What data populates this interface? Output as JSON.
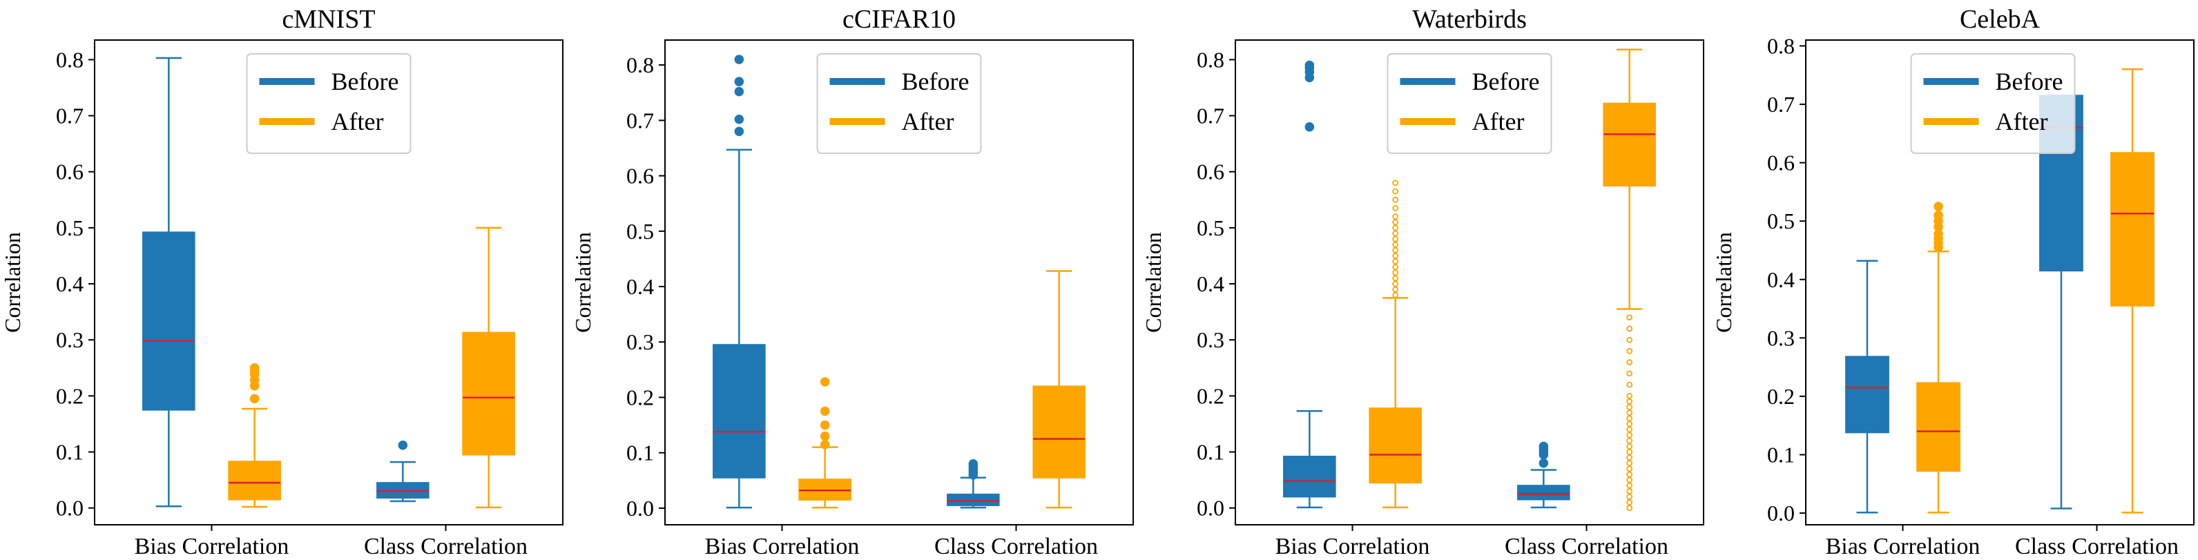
{
  "colors": {
    "before": "#1f77b4",
    "after": "#ffa500",
    "median": "#e8192c",
    "axis": "#000000"
  },
  "chart_data": [
    {
      "type": "box",
      "title": "cMNIST",
      "ylabel": "Correlation",
      "categories": [
        "Bias Correlation",
        "Class Correlation"
      ],
      "ylim": [
        -0.03,
        0.835
      ],
      "yticks": [
        "0.0",
        "0.1",
        "0.2",
        "0.3",
        "0.4",
        "0.5",
        "0.6",
        "0.7",
        "0.8"
      ],
      "legend": {
        "position": "upper-center",
        "entries": [
          "Before",
          "After"
        ]
      },
      "series": [
        {
          "name": "Before",
          "boxes": [
            {
              "min": 0.003,
              "q1": 0.175,
              "median": 0.298,
              "q3": 0.492,
              "max": 0.803,
              "outliers": []
            },
            {
              "min": 0.012,
              "q1": 0.018,
              "median": 0.03,
              "q3": 0.045,
              "max": 0.082,
              "outliers": [
                0.112
              ]
            }
          ]
        },
        {
          "name": "After",
          "boxes": [
            {
              "min": 0.002,
              "q1": 0.015,
              "median": 0.045,
              "q3": 0.083,
              "max": 0.177,
              "outliers": [
                0.195,
                0.218,
                0.228,
                0.238,
                0.245,
                0.25
              ]
            },
            {
              "min": 0.001,
              "q1": 0.095,
              "median": 0.197,
              "q3": 0.313,
              "max": 0.5,
              "outliers": []
            }
          ]
        }
      ]
    },
    {
      "type": "box",
      "title": "cCIFAR10",
      "ylabel": "Correlation",
      "categories": [
        "Bias Correlation",
        "Class Correlation"
      ],
      "ylim": [
        -0.03,
        0.845
      ],
      "yticks": [
        "0.0",
        "0.1",
        "0.2",
        "0.3",
        "0.4",
        "0.5",
        "0.6",
        "0.7",
        "0.8"
      ],
      "legend": {
        "position": "upper-center",
        "entries": [
          "Before",
          "After"
        ]
      },
      "series": [
        {
          "name": "Before",
          "boxes": [
            {
              "min": 0.001,
              "q1": 0.055,
              "median": 0.138,
              "q3": 0.295,
              "max": 0.647,
              "outliers": [
                0.68,
                0.702,
                0.752,
                0.77,
                0.81
              ]
            },
            {
              "min": 0.001,
              "q1": 0.005,
              "median": 0.013,
              "q3": 0.025,
              "max": 0.055,
              "outliers": [
                0.06,
                0.065,
                0.07,
                0.075,
                0.08
              ]
            }
          ]
        },
        {
          "name": "After",
          "boxes": [
            {
              "min": 0.001,
              "q1": 0.015,
              "median": 0.032,
              "q3": 0.052,
              "max": 0.11,
              "outliers": [
                0.115,
                0.13,
                0.15,
                0.175,
                0.228
              ]
            },
            {
              "min": 0.001,
              "q1": 0.055,
              "median": 0.125,
              "q3": 0.22,
              "max": 0.428,
              "outliers": []
            }
          ]
        }
      ]
    },
    {
      "type": "box",
      "title": "Waterbirds",
      "ylabel": "Correlation",
      "categories": [
        "Bias Correlation",
        "Class Correlation"
      ],
      "ylim": [
        -0.03,
        0.835
      ],
      "yticks": [
        "0.0",
        "0.1",
        "0.2",
        "0.3",
        "0.4",
        "0.5",
        "0.6",
        "0.7",
        "0.8"
      ],
      "legend": {
        "position": "upper-center",
        "entries": [
          "Before",
          "After"
        ]
      },
      "series": [
        {
          "name": "Before",
          "boxes": [
            {
              "min": 0.001,
              "q1": 0.02,
              "median": 0.048,
              "q3": 0.092,
              "max": 0.173,
              "outliers": [
                0.68,
                0.768,
                0.778,
                0.785,
                0.79
              ]
            },
            {
              "min": 0.001,
              "q1": 0.015,
              "median": 0.025,
              "q3": 0.04,
              "max": 0.068,
              "outliers": [
                0.08,
                0.095,
                0.1,
                0.105,
                0.11
              ]
            }
          ]
        },
        {
          "name": "After",
          "boxes": [
            {
              "min": 0.001,
              "q1": 0.045,
              "median": 0.095,
              "q3": 0.178,
              "max": 0.375,
              "outliers": [
                0.38,
                0.39,
                0.4,
                0.41,
                0.42,
                0.43,
                0.44,
                0.45,
                0.46,
                0.47,
                0.48,
                0.49,
                0.5,
                0.51,
                0.52,
                0.535,
                0.55,
                0.565,
                0.58
              ]
            },
            {
              "min": 0.355,
              "q1": 0.575,
              "median": 0.667,
              "q3": 0.722,
              "max": 0.818,
              "outliers": [
                0.0,
                0.01,
                0.02,
                0.03,
                0.04,
                0.05,
                0.06,
                0.07,
                0.08,
                0.09,
                0.1,
                0.11,
                0.12,
                0.13,
                0.14,
                0.15,
                0.16,
                0.17,
                0.18,
                0.19,
                0.2,
                0.22,
                0.24,
                0.26,
                0.28,
                0.3,
                0.32,
                0.34
              ]
            }
          ]
        }
      ]
    },
    {
      "type": "box",
      "title": "CelebA",
      "ylabel": "Correlation",
      "categories": [
        "Bias Correlation",
        "Class Correlation"
      ],
      "ylim": [
        -0.02,
        0.81
      ],
      "yticks": [
        "0.0",
        "0.1",
        "0.2",
        "0.3",
        "0.4",
        "0.5",
        "0.6",
        "0.7",
        "0.8"
      ],
      "legend": {
        "position": "upper-center",
        "entries": [
          "Before",
          "After"
        ]
      },
      "series": [
        {
          "name": "Before",
          "boxes": [
            {
              "min": 0.001,
              "q1": 0.138,
              "median": 0.215,
              "q3": 0.268,
              "max": 0.432,
              "outliers": []
            },
            {
              "min": 0.008,
              "q1": 0.415,
              "median": 0.66,
              "q3": 0.715,
              "max": 0.715,
              "outliers": []
            }
          ]
        },
        {
          "name": "After",
          "boxes": [
            {
              "min": 0.001,
              "q1": 0.072,
              "median": 0.14,
              "q3": 0.223,
              "max": 0.448,
              "outliers": [
                0.455,
                0.462,
                0.47,
                0.478,
                0.49,
                0.5,
                0.51,
                0.525
              ]
            },
            {
              "min": 0.001,
              "q1": 0.355,
              "median": 0.513,
              "q3": 0.617,
              "max": 0.76,
              "outliers": []
            }
          ]
        }
      ]
    }
  ]
}
